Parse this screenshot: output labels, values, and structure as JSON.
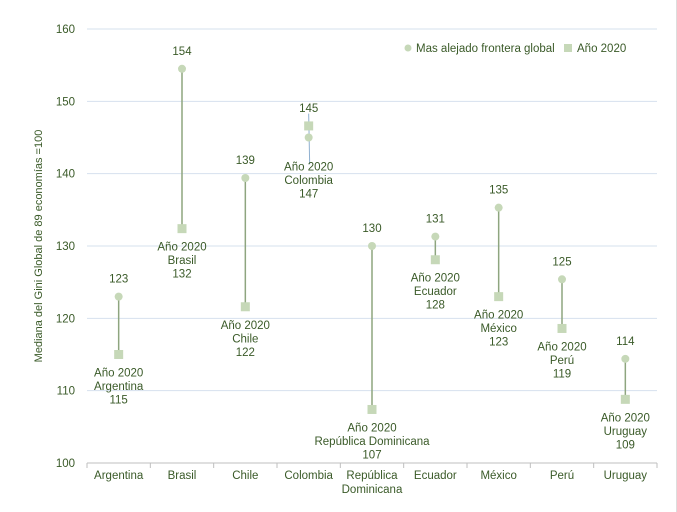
{
  "chart_data": {
    "type": "dumbbell",
    "title": "",
    "ylabel": "Mediana del Gini Global de 89 economías =100",
    "ylim": [
      100,
      160
    ],
    "yticks": [
      "100",
      "110",
      "120",
      "130",
      "140",
      "150",
      "160"
    ],
    "yticks_values": [
      100,
      110,
      120,
      130,
      140,
      150,
      160
    ],
    "grid": true,
    "legend_position": "top-right",
    "categories": [
      "Argentina",
      "Brasil",
      "Chile",
      "Colombia",
      "República Dominicana",
      "Ecuador",
      "México",
      "Perú",
      "Uruguay"
    ],
    "series": [
      {
        "name": "Mas alejado frontera global",
        "marker": "circle",
        "values": [
          123,
          154.5,
          139.4,
          145,
          130,
          131.3,
          135.3,
          125.4,
          114.4
        ],
        "labels": [
          "123",
          "154",
          "139",
          "145",
          "130",
          "131",
          "135",
          "125",
          "114"
        ]
      },
      {
        "name": "Año 2020",
        "marker": "square",
        "values": [
          115,
          132.4,
          121.6,
          146.6,
          107.4,
          128.1,
          123,
          118.6,
          108.8
        ],
        "labels": [
          "Año 2020|Argentina|115",
          "Año 2020|Brasil|132",
          "Año 2020|Chile|122",
          "Año 2020|Colombia|147",
          "Año 2020|República Dominicana|107",
          "Año 2020|Ecuador|128",
          "Año 2020|México|123",
          "Año 2020|Perú|119",
          "Año 2020|Uruguay|109"
        ]
      }
    ],
    "colors": {
      "circle": "#c6d8b8",
      "square": "#c6d8b8",
      "line": "#8ea57f",
      "text": "#3a5a28",
      "grid": "#d6e1ee"
    }
  }
}
